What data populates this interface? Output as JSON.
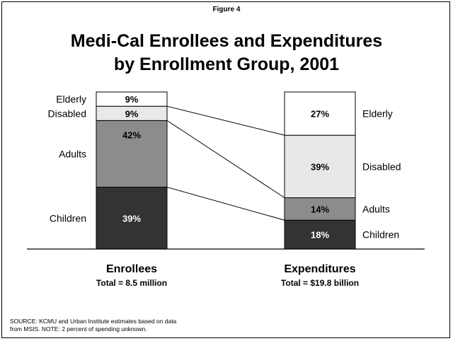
{
  "figure_label": "Figure 4",
  "title_lines": [
    "Medi-Cal Enrollees and Expenditures",
    "by Enrollment Group, 2001"
  ],
  "groups": {
    "enrollees": {
      "title": "Enrollees",
      "subtitle": "Total = 8.5 million"
    },
    "expenditures": {
      "title": "Expenditures",
      "subtitle": "Total = $19.8 billion"
    }
  },
  "source_lines": [
    "SOURCE: KCMU and Urban Institute estimates based on data",
    "from MSIS. NOTE: 2 percent of spending unknown."
  ],
  "colors": {
    "Elderly": "#ffffff",
    "Disabled": "#e8e8e8",
    "Adults": "#8c8c8c",
    "Children": "#333333"
  },
  "chart_data": {
    "type": "bar",
    "stacked": true,
    "unit": "%",
    "categories": [
      "Enrollees",
      "Expenditures"
    ],
    "series": [
      {
        "name": "Children",
        "values": [
          39,
          18
        ],
        "labels": [
          "39%",
          "18%"
        ]
      },
      {
        "name": "Adults",
        "values": [
          42,
          14
        ],
        "labels": [
          "42%",
          "14%"
        ]
      },
      {
        "name": "Disabled",
        "values": [
          9,
          39
        ],
        "labels": [
          "9%",
          "39%"
        ]
      },
      {
        "name": "Elderly",
        "values": [
          9,
          27
        ],
        "labels": [
          "9%",
          "27%"
        ]
      }
    ]
  }
}
